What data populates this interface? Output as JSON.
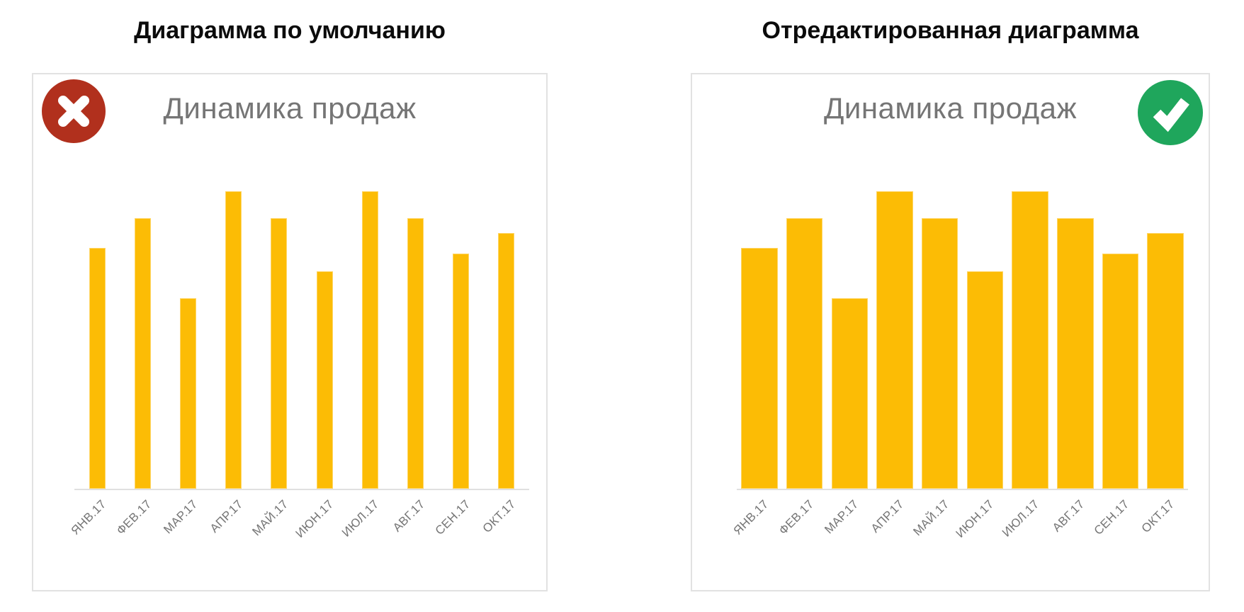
{
  "panels": [
    {
      "heading": "Диаграмма по умолчанию",
      "badge": {
        "type": "error",
        "icon": "x-mark-icon",
        "color": "#b1301d"
      },
      "chart_title": "Динамика продаж"
    },
    {
      "heading": "Отредактированная диаграмма",
      "badge": {
        "type": "success",
        "icon": "check-mark-icon",
        "color": "#1fa65c"
      },
      "chart_title": "Динамика продаж"
    }
  ],
  "chart_data": [
    {
      "type": "bar",
      "title": "Динамика продаж",
      "categories": [
        "ЯНВ.17",
        "ФЕВ.17",
        "МАР.17",
        "АПР.17",
        "МАЙ.17",
        "ИЮН.17",
        "ИЮЛ.17",
        "АВГ.17",
        "СЕН.17",
        "ОКТ.17"
      ],
      "values": [
        81,
        91,
        64,
        100,
        91,
        73,
        100,
        91,
        79,
        86
      ],
      "ylim": [
        0,
        100
      ],
      "xlabel": "",
      "ylabel": "",
      "bar_color": "#fcbc05",
      "bar_style": "thin",
      "x_tick_rotation": -45,
      "y_axis_visible": false,
      "gridlines": false,
      "legend": "none"
    },
    {
      "type": "bar",
      "title": "Динамика продаж",
      "categories": [
        "ЯНВ.17",
        "ФЕВ.17",
        "МАР.17",
        "АПР.17",
        "МАЙ.17",
        "ИЮН.17",
        "ИЮЛ.17",
        "АВГ.17",
        "СЕН.17",
        "ОКТ.17"
      ],
      "values": [
        81,
        91,
        64,
        100,
        91,
        73,
        100,
        91,
        79,
        86
      ],
      "ylim": [
        0,
        100
      ],
      "xlabel": "",
      "ylabel": "",
      "bar_color": "#fcbc05",
      "bar_style": "wide",
      "x_tick_rotation": -45,
      "y_axis_visible": false,
      "gridlines": false,
      "legend": "none"
    }
  ]
}
